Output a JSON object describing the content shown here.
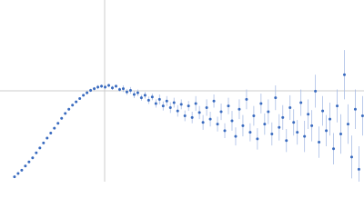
{
  "chart_data": {
    "type": "scatter",
    "xlim": [
      0,
      6.024
    ],
    "ylim": [
      0,
      2.208
    ],
    "reference_lines": {
      "x": 1.732,
      "y": 1.104,
      "color": "#cccccc"
    },
    "color": "#3a6bbf",
    "error_color": "#a9bde6",
    "x": [
      0.24,
      0.3,
      0.36,
      0.42,
      0.48,
      0.54,
      0.6,
      0.66,
      0.72,
      0.78,
      0.84,
      0.9,
      0.96,
      1.02,
      1.08,
      1.14,
      1.2,
      1.26,
      1.32,
      1.38,
      1.44,
      1.5,
      1.56,
      1.62,
      1.68,
      1.74,
      1.8,
      1.86,
      1.92,
      1.98,
      2.04,
      2.1,
      2.16,
      2.22,
      2.28,
      2.34,
      2.4,
      2.46,
      2.52,
      2.58,
      2.64,
      2.7,
      2.76,
      2.82,
      2.88,
      2.94,
      3.0,
      3.06,
      3.12,
      3.18,
      3.24,
      3.3,
      3.36,
      3.42,
      3.48,
      3.54,
      3.6,
      3.66,
      3.72,
      3.78,
      3.84,
      3.9,
      3.96,
      4.02,
      4.08,
      4.14,
      4.2,
      4.26,
      4.32,
      4.38,
      4.44,
      4.5,
      4.56,
      4.62,
      4.68,
      4.74,
      4.8,
      4.86,
      4.92,
      4.98,
      5.04,
      5.1,
      5.16,
      5.22,
      5.28,
      5.34,
      5.4,
      5.46,
      5.52,
      5.58,
      5.64,
      5.7,
      5.76,
      5.82,
      5.88,
      5.94,
      6.0
    ],
    "values": [
      0.06,
      0.1,
      0.14,
      0.19,
      0.24,
      0.29,
      0.35,
      0.41,
      0.47,
      0.53,
      0.59,
      0.65,
      0.71,
      0.77,
      0.83,
      0.88,
      0.93,
      0.97,
      1.01,
      1.05,
      1.08,
      1.11,
      1.13,
      1.15,
      1.16,
      1.15,
      1.17,
      1.14,
      1.16,
      1.12,
      1.13,
      1.09,
      1.11,
      1.06,
      1.08,
      1.02,
      1.05,
      0.99,
      1.03,
      0.95,
      1.0,
      0.92,
      0.98,
      0.9,
      0.96,
      0.86,
      0.94,
      0.8,
      0.92,
      0.78,
      0.95,
      0.84,
      0.72,
      0.9,
      0.76,
      0.98,
      0.7,
      0.85,
      0.62,
      0.92,
      0.74,
      0.55,
      0.88,
      0.68,
      1.0,
      0.6,
      0.8,
      0.52,
      0.95,
      0.7,
      0.85,
      0.58,
      1.02,
      0.66,
      0.78,
      0.5,
      0.9,
      0.72,
      0.6,
      0.96,
      0.55,
      0.82,
      0.68,
      1.1,
      0.48,
      0.86,
      0.62,
      0.76,
      0.4,
      0.92,
      0.58,
      1.3,
      0.7,
      0.3,
      0.88,
      0.15,
      0.8
    ],
    "errors": [
      0.01,
      0.01,
      0.01,
      0.01,
      0.01,
      0.01,
      0.01,
      0.01,
      0.01,
      0.01,
      0.015,
      0.015,
      0.015,
      0.015,
      0.015,
      0.015,
      0.015,
      0.015,
      0.015,
      0.015,
      0.02,
      0.02,
      0.02,
      0.025,
      0.02,
      0.025,
      0.02,
      0.025,
      0.02,
      0.025,
      0.04,
      0.035,
      0.04,
      0.045,
      0.04,
      0.035,
      0.04,
      0.045,
      0.04,
      0.05,
      0.06,
      0.055,
      0.06,
      0.065,
      0.06,
      0.07,
      0.06,
      0.065,
      0.06,
      0.07,
      0.09,
      0.08,
      0.09,
      0.1,
      0.09,
      0.08,
      0.09,
      0.1,
      0.09,
      0.1,
      0.12,
      0.11,
      0.12,
      0.13,
      0.12,
      0.11,
      0.12,
      0.13,
      0.12,
      0.13,
      0.15,
      0.14,
      0.15,
      0.16,
      0.15,
      0.14,
      0.15,
      0.16,
      0.15,
      0.16,
      0.19,
      0.18,
      0.19,
      0.2,
      0.19,
      0.18,
      0.19,
      0.2,
      0.19,
      0.2,
      0.24,
      0.3,
      0.24,
      0.26,
      0.24,
      0.28,
      0.24
    ]
  }
}
